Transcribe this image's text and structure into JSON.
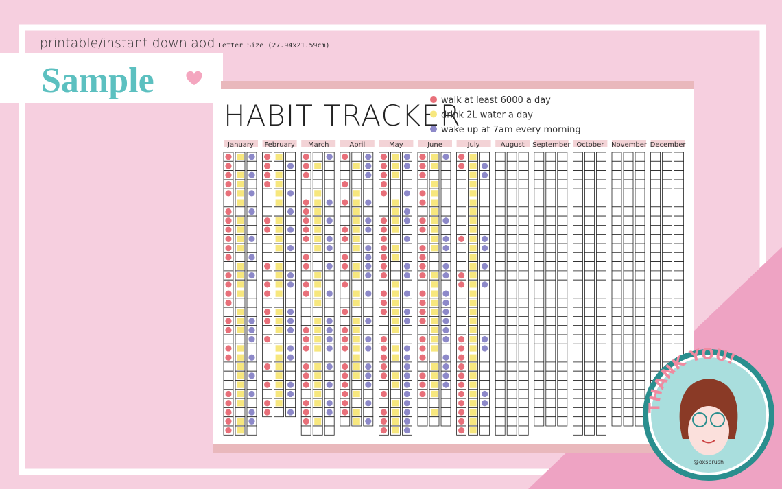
{
  "header": {
    "subtitle": "printable/instant downlaod",
    "size": "Letter Size (27.94x21.59cm)",
    "badge": "Sample"
  },
  "tracker": {
    "title": "HABIT TRACKER",
    "habits": [
      {
        "label": "walk at least 6000 a day",
        "color": "#e8707a"
      },
      {
        "label": "drink 2L water a day",
        "color": "#f7e77e"
      },
      {
        "label": "wake up at 7am every morning",
        "color": "#8d89c9"
      }
    ],
    "months": [
      {
        "name": "January",
        "days": 31,
        "checks": [
          "1111101111110111101101100011111",
          "1011110111101111011101111111011",
          "1010101001010100001110101010110"
        ]
      },
      {
        "name": "February",
        "days": 29,
        "checks": [
          "11110001100010110110100101011",
          "10111101111011110111011111110",
          "01001010101001100111011001101"
        ]
      },
      {
        "name": "March",
        "days": 31,
        "checks": [
          "1110011111011011000111011101110",
          "0100111111100111101111011111010",
          "1000010101101001001111010101100"
        ]
      },
      {
        "name": "April",
        "days": 30,
        "checks": [
          "100101001101101001011101111110",
          "010011111110110110111111101011",
          "111001011011110100101101110101"
        ]
      },
      {
        "name": "May",
        "days": 31,
        "checks": [
          "1111100111111101110011111010111",
          "1110011110110011111101101101111",
          "1100101101001101011001111111111"
        ]
      },
      {
        "name": "June",
        "days": 30,
        "checks": [
          "111011011011110111101110111000",
          "110111111110011111111101111010",
          "100000010110110111111011110000"
        ]
      },
      {
        "name": "July",
        "days": 31,
        "checks": [
          "1100000001000110000011111111111",
          "1111111111111111111111111111111",
          "0110000001101010000011000011000"
        ]
      },
      {
        "name": "August",
        "days": 31,
        "checks": [
          "",
          "",
          ""
        ]
      },
      {
        "name": "September",
        "days": 30,
        "checks": [
          "",
          "",
          ""
        ]
      },
      {
        "name": "October",
        "days": 31,
        "checks": [
          "",
          "",
          ""
        ]
      },
      {
        "name": "November",
        "days": 30,
        "checks": [
          "",
          "",
          ""
        ]
      },
      {
        "name": "December",
        "days": 31,
        "checks": [
          "",
          "",
          ""
        ]
      }
    ]
  },
  "thanks": {
    "title": "THANK YOU!",
    "handle": "@oxsbrush"
  }
}
